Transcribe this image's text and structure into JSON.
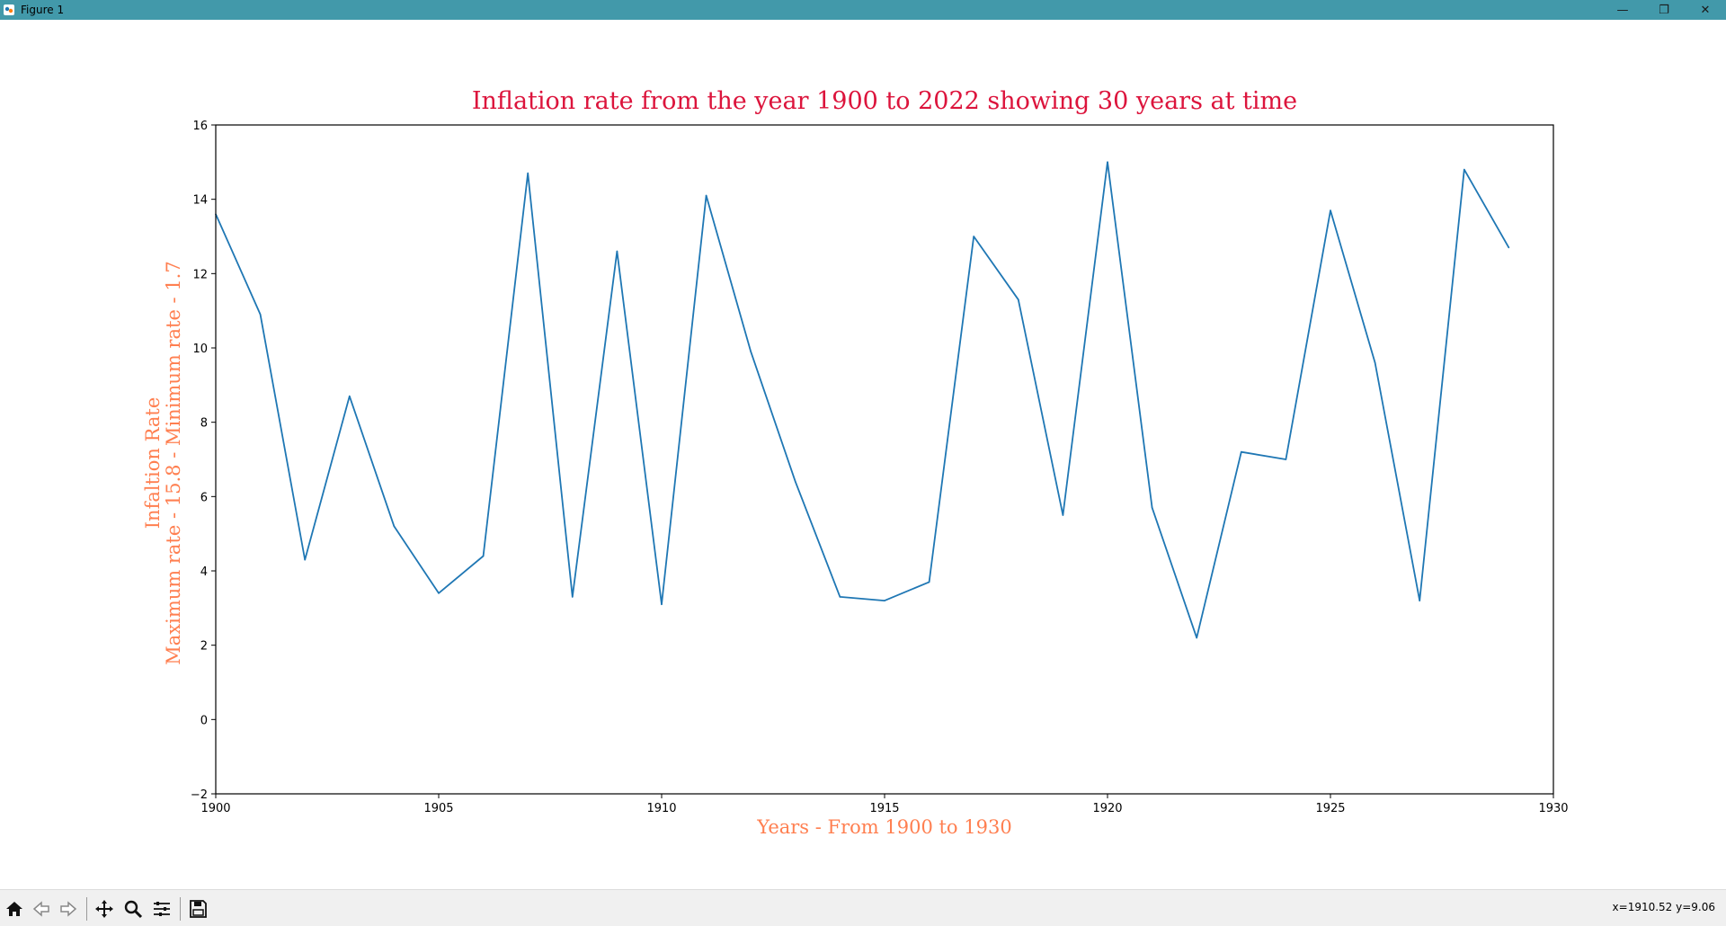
{
  "window": {
    "title": "Figure 1",
    "controls": {
      "minimize": "—",
      "restore": "❐",
      "close": "✕"
    }
  },
  "toolbar": {
    "buttons": [
      "home-icon",
      "back-icon",
      "forward-icon",
      "pan-icon",
      "zoom-icon",
      "configure-subplots-icon",
      "save-icon"
    ],
    "coordinates": "x=1910.52 y=9.06"
  },
  "colors": {
    "titlebar": "#4299aa",
    "title": "#dc143c",
    "axis_labels": "#ff7f50",
    "line": "#1f77b4"
  },
  "chart_data": {
    "type": "line",
    "title": "Inflation rate from the year 1900 to 2022 showing 30 years at time",
    "xlabel": "Years - From 1900 to 1930",
    "ylabel": [
      "Infaltion Rate",
      "Maximum rate - 15.8 - Minimum rate - 1.7"
    ],
    "xlim": [
      1900,
      1930
    ],
    "ylim": [
      -2,
      16
    ],
    "xticks": [
      1900,
      1905,
      1910,
      1915,
      1920,
      1925,
      1930
    ],
    "yticks": [
      -2,
      0,
      2,
      4,
      6,
      8,
      10,
      12,
      14,
      16
    ],
    "grid": false,
    "series": [
      {
        "x": [
          1900,
          1901,
          1902,
          1903,
          1904,
          1905,
          1906,
          1907,
          1908,
          1909,
          1910,
          1911,
          1912,
          1913,
          1914,
          1915,
          1916,
          1917,
          1918,
          1919,
          1920,
          1921,
          1922,
          1923,
          1924,
          1925,
          1926,
          1927,
          1928,
          1929
        ],
        "y": [
          13.6,
          10.9,
          4.3,
          8.7,
          5.2,
          3.4,
          4.4,
          14.7,
          3.3,
          12.6,
          3.1,
          14.1,
          9.9,
          6.4,
          3.3,
          3.2,
          3.7,
          13.0,
          11.3,
          5.5,
          15.0,
          5.7,
          2.2,
          7.2,
          7.0,
          13.7,
          9.6,
          3.2,
          14.8,
          12.7
        ]
      }
    ]
  }
}
